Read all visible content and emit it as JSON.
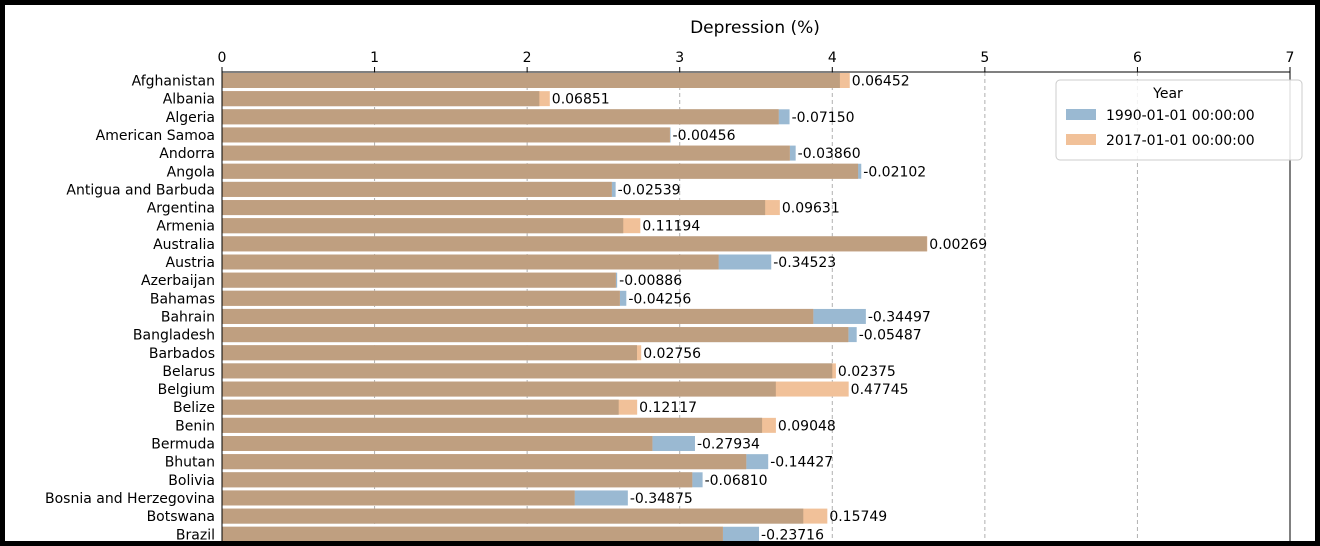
{
  "chart_data": {
    "type": "bar",
    "orientation": "horizontal",
    "title": "Depression (%)",
    "xlim": [
      0,
      7
    ],
    "x_ticks": [
      0,
      1,
      2,
      3,
      4,
      5,
      6,
      7
    ],
    "x_axis_position": "top",
    "grid": "vertical dashed",
    "legend": {
      "title": "Year",
      "placement": "top-right",
      "entries": [
        "1990-01-01 00:00:00",
        "2017-01-01 00:00:00"
      ]
    },
    "colors": {
      "1990": "#9ab9d2",
      "2017": "#f1c199",
      "overlap": "#bf9f80"
    },
    "categories": [
      "Afghanistan",
      "Albania",
      "Algeria",
      "American Samoa",
      "Andorra",
      "Angola",
      "Antigua and Barbuda",
      "Argentina",
      "Armenia",
      "Australia",
      "Austria",
      "Azerbaijan",
      "Bahamas",
      "Bahrain",
      "Bangladesh",
      "Barbados",
      "Belarus",
      "Belgium",
      "Belize",
      "Benin",
      "Bermuda",
      "Bhutan",
      "Bolivia",
      "Bosnia and Herzegovina",
      "Botswana",
      "Brazil"
    ],
    "series": [
      {
        "name": "1990-01-01 00:00:00",
        "values": [
          4.05,
          2.08,
          3.72,
          2.94,
          3.76,
          4.19,
          2.58,
          3.56,
          2.63,
          4.62,
          3.6,
          2.59,
          2.65,
          4.22,
          4.16,
          2.72,
          4.0,
          3.63,
          2.6,
          3.54,
          3.1,
          3.58,
          3.15,
          2.66,
          3.81,
          3.52
        ]
      },
      {
        "name": "2017-01-01 00:00:00",
        "values": [
          4.11452,
          2.14851,
          3.6485,
          2.93544,
          3.7214,
          4.16898,
          2.55461,
          3.65631,
          2.74194,
          4.62269,
          3.25477,
          2.58114,
          2.60744,
          3.87503,
          4.10513,
          2.74756,
          4.02375,
          4.10745,
          2.72117,
          3.63048,
          2.82066,
          3.43573,
          3.0819,
          2.31125,
          3.96749,
          3.28284
        ]
      }
    ],
    "data_labels": [
      "0.06452",
      "0.06851",
      "-0.07150",
      "-0.00456",
      "-0.03860",
      "-0.02102",
      "-0.02539",
      "0.09631",
      "0.11194",
      "0.00269",
      "-0.34523",
      "-0.00886",
      "-0.04256",
      "-0.34497",
      "-0.05487",
      "0.02756",
      "0.02375",
      "0.47745",
      "0.12117",
      "0.09048",
      "-0.27934",
      "-0.14427",
      "-0.06810",
      "-0.34875",
      "0.15749",
      "-0.23716"
    ]
  }
}
